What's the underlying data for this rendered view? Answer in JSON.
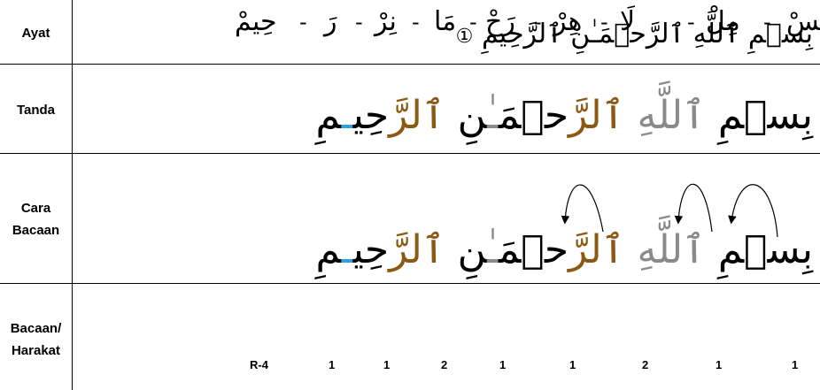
{
  "rows": {
    "ayat_label": "Ayat",
    "tanda_label": "Tanda",
    "cara_label_1": "Cara",
    "cara_label_2": "Bacaan",
    "bacaan_label_1": "Bacaan/",
    "bacaan_label_2": "Harakat"
  },
  "ayat": {
    "text": "بِسۡمِ ٱللَّهِ ٱلرَّحۡمَـٰنِ ٱلرَّحِيمِ",
    "end_mark": "①"
  },
  "tanda": {
    "w1": "بِسۡمِ ",
    "w2a": "ٱللَّهِ",
    "w3a": " ٱلرَّ",
    "w3b": "حۡمَ",
    "w3c": "ـٰ",
    "w3d": "نِ ",
    "w4a": "ٱلرَّ",
    "w4b": "حِي",
    "w4c": "ـ",
    "w4d": "مِ"
  },
  "cara": {
    "w1": "بِسۡمِ ",
    "w2a": "ٱللَّهِ",
    "w3a": " ٱلرَّ",
    "w3b": "حۡمَ",
    "w3c": "ـٰ",
    "w3d": "نِ ",
    "w4a": "ٱلرَّ",
    "w4b": "حِي",
    "w4c": "ـ",
    "w4d": "مِ"
  },
  "bacaan": {
    "syllables": [
      "بِسْ",
      "مِلْ",
      "لَا",
      "هِرْ",
      "رَحْ",
      "مَا",
      "نِرْ",
      "رَ",
      "حِيمْ"
    ],
    "counts": [
      "1",
      "1",
      "2",
      "1",
      "1",
      "2",
      "1",
      "1",
      "R-4"
    ],
    "dash": "-"
  },
  "colors": {
    "gray": "#8a8a8a",
    "brown": "#8b5a12",
    "blue": "#2aa0e0"
  }
}
